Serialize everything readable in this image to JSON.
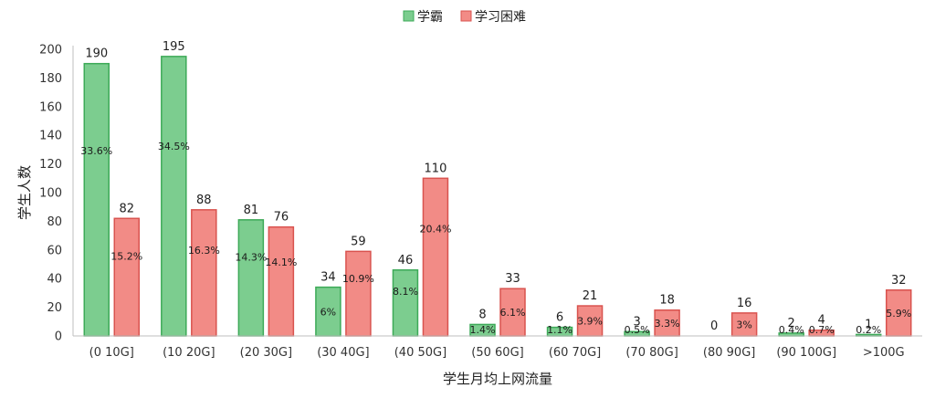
{
  "chart_data": {
    "type": "bar",
    "title": "",
    "xlabel": "学生月均上网流量",
    "ylabel": "学生人数",
    "ylim": [
      0,
      200
    ],
    "yticks": [
      0,
      20,
      40,
      60,
      80,
      100,
      120,
      140,
      160,
      180,
      200
    ],
    "grid": false,
    "legend_position": "top-center",
    "categories": [
      "(0 10G]",
      "(10 20G]",
      "(20 30G]",
      "(30 40G]",
      "(40 50G]",
      "(50 60G]",
      "(60 70G]",
      "(70 80G]",
      "(80 90G]",
      "(90 100G]",
      ">100G"
    ],
    "series": [
      {
        "name": "学霸",
        "color": "#7ccd8f",
        "edge_color": "#3daa58",
        "values": [
          190,
          195,
          81,
          34,
          46,
          8,
          6,
          3,
          0,
          2,
          1
        ],
        "percent_labels": [
          "33.6%",
          "34.5%",
          "14.3%",
          "6%",
          "8.1%",
          "1.4%",
          "1.1%",
          "0.5%",
          "",
          "0.4%",
          "0.2%"
        ]
      },
      {
        "name": "学习困难",
        "color": "#f28b86",
        "edge_color": "#d9534f",
        "values": [
          82,
          88,
          76,
          59,
          110,
          33,
          21,
          18,
          16,
          4,
          32
        ],
        "percent_labels": [
          "15.2%",
          "16.3%",
          "14.1%",
          "10.9%",
          "20.4%",
          "6.1%",
          "3.9%",
          "3.3%",
          "3%",
          "0.7%",
          "5.9%"
        ]
      }
    ]
  }
}
